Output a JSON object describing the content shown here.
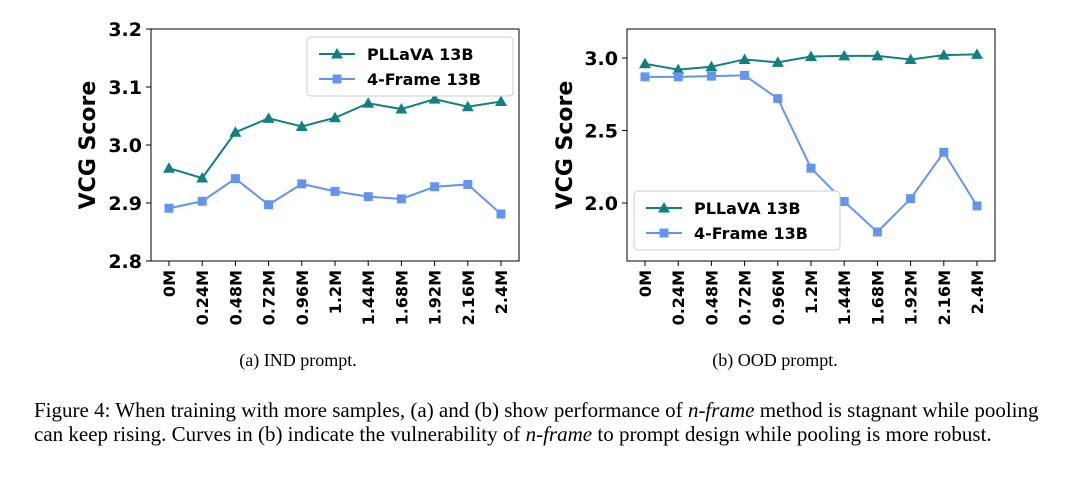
{
  "chart_data": [
    {
      "type": "line",
      "subcaption": "(a)  IND prompt.",
      "ylabel": "VCG Score",
      "categories": [
        "0M",
        "0.24M",
        "0.48M",
        "0.72M",
        "0.96M",
        "1.2M",
        "1.44M",
        "1.68M",
        "1.92M",
        "2.16M",
        "2.4M"
      ],
      "ylim": [
        2.8,
        3.2
      ],
      "yticks": [
        "2.8",
        "2.9",
        "3.0",
        "3.1",
        "3.2"
      ],
      "ytick_values": [
        2.8,
        2.9,
        3.0,
        3.1,
        3.2
      ],
      "legend_position": "top-right",
      "grid": false,
      "series": [
        {
          "name": "PLLaVA 13B",
          "marker": "triangle",
          "color": "#108080",
          "values": [
            2.96,
            2.943,
            3.022,
            3.046,
            3.032,
            3.047,
            3.072,
            3.062,
            3.079,
            3.066,
            3.075
          ]
        },
        {
          "name": "4-Frame 13B",
          "marker": "square",
          "color": "#6495ed",
          "values": [
            2.891,
            2.903,
            2.942,
            2.897,
            2.933,
            2.92,
            2.911,
            2.907,
            2.928,
            2.932,
            2.881
          ]
        }
      ]
    },
    {
      "type": "line",
      "subcaption": "(b)  OOD prompt.",
      "ylabel": "VCG Score",
      "categories": [
        "0M",
        "0.24M",
        "0.48M",
        "0.72M",
        "0.96M",
        "1.2M",
        "1.44M",
        "1.68M",
        "1.92M",
        "2.16M",
        "2.4M"
      ],
      "ylim": [
        1.6,
        3.2
      ],
      "yticks": [
        "2.0",
        "2.5",
        "3.0"
      ],
      "ytick_values": [
        2.0,
        2.5,
        3.0
      ],
      "legend_position": "bottom-left",
      "grid": false,
      "series": [
        {
          "name": "PLLaVA 13B",
          "marker": "triangle",
          "color": "#108080",
          "values": [
            2.96,
            2.92,
            2.94,
            2.99,
            2.97,
            3.01,
            3.015,
            3.015,
            2.99,
            3.02,
            3.025
          ]
        },
        {
          "name": "4-Frame 13B",
          "marker": "square",
          "color": "#6495ed",
          "values": [
            2.87,
            2.87,
            2.875,
            2.88,
            2.72,
            2.24,
            2.01,
            1.8,
            2.03,
            2.35,
            1.98
          ]
        }
      ]
    }
  ],
  "caption": {
    "prefix": "Figure 4:  When training with more samples, (a) and (b) show performance of ",
    "em1": "n-frame",
    "mid1": " method is stagnant while pooling can keep rising. Curves in (b) indicate the vulnerability of ",
    "em2": "n-frame",
    "suffix": " to prompt design while pooling is more robust."
  }
}
